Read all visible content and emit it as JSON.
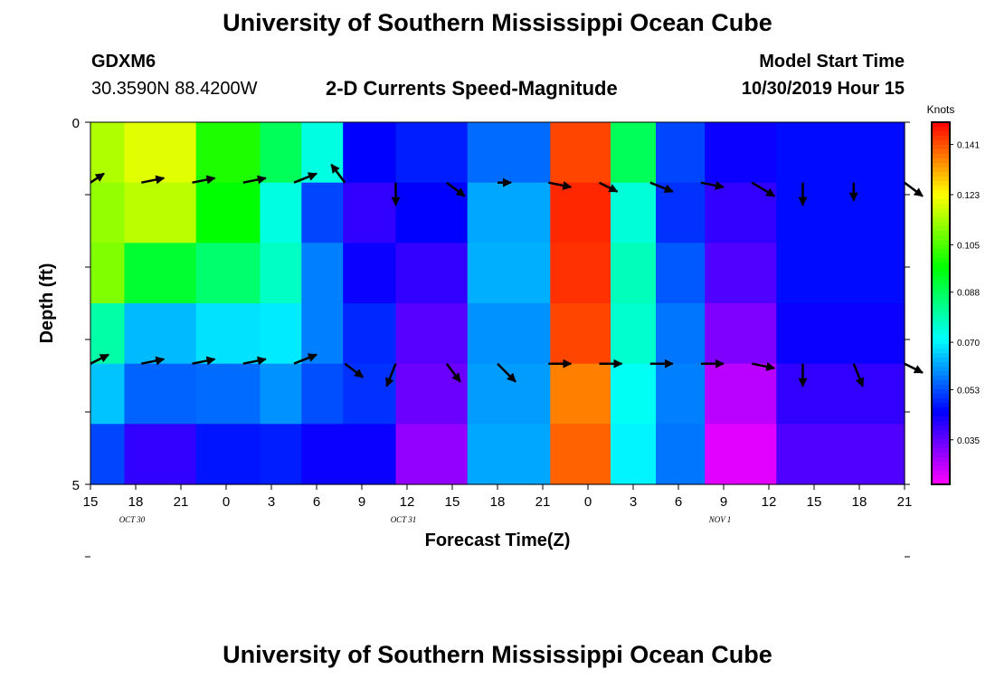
{
  "header": {
    "title": "University of Southern Mississippi Ocean Cube",
    "station_name": "GDXM6",
    "station_coords": "30.3590N 88.4200W",
    "plot_title": "2-D Currents Speed-Magnitude",
    "model_start_label": "Model Start Time",
    "model_start_value": "10/30/2019 Hour 15"
  },
  "footer": {
    "title": "University of Southern Mississippi Ocean Cube"
  },
  "chart_data": {
    "type": "heatmap",
    "title": "2-D Currents Speed-Magnitude",
    "xlabel": "Forecast Time(Z)",
    "ylabel": "Depth (ft)",
    "ylim": [
      0,
      5
    ],
    "y_tick_labels": [
      "0",
      "5"
    ],
    "x_tick_labels": [
      "15",
      "18",
      "21",
      "0",
      "3",
      "6",
      "9",
      "12",
      "15",
      "18",
      "21",
      "0",
      "3",
      "6",
      "9",
      "12",
      "15",
      "18",
      "21"
    ],
    "date_labels": [
      {
        "text": "OCT 30",
        "at_tick": 1
      },
      {
        "text": "OCT 31",
        "at_tick": 7
      },
      {
        "text": "NOV 1",
        "at_tick": 14
      }
    ],
    "colorbar": {
      "label": "Knots",
      "range": [
        0.019,
        0.149
      ],
      "tick_values": [
        0.141,
        0.123,
        0.105,
        0.088,
        0.07,
        0.053,
        0.035
      ],
      "tick_labels": [
        "0.141",
        "0.123",
        "0.105",
        "0.088",
        "0.070",
        "0.053",
        "0.035"
      ]
    },
    "time_hours_from_start": [
      0,
      3,
      6,
      9,
      12,
      15,
      18,
      21,
      24,
      27,
      30,
      33,
      36,
      39,
      42,
      45,
      48,
      51,
      54
    ],
    "speed_column_centers_hours": [
      0,
      4.5,
      9.5,
      13,
      15,
      18.5,
      22,
      28,
      33,
      36,
      39,
      42.5,
      48.5
    ],
    "speed_knots_by_depth_layer": [
      [
        0.115,
        0.12,
        0.1,
        0.088,
        0.074,
        0.045,
        0.048,
        0.056,
        0.142,
        0.088,
        0.052,
        0.044,
        0.046
      ],
      [
        0.112,
        0.116,
        0.097,
        0.074,
        0.052,
        0.04,
        0.045,
        0.062,
        0.145,
        0.075,
        0.05,
        0.04,
        0.046
      ],
      [
        0.11,
        0.092,
        0.086,
        0.077,
        0.058,
        0.044,
        0.04,
        0.063,
        0.144,
        0.078,
        0.054,
        0.037,
        0.046
      ],
      [
        0.08,
        0.064,
        0.068,
        0.069,
        0.058,
        0.049,
        0.036,
        0.06,
        0.142,
        0.076,
        0.057,
        0.032,
        0.044
      ],
      [
        0.065,
        0.055,
        0.056,
        0.06,
        0.053,
        0.05,
        0.034,
        0.061,
        0.136,
        0.072,
        0.058,
        0.026,
        0.04
      ],
      [
        0.052,
        0.04,
        0.047,
        0.048,
        0.044,
        0.044,
        0.03,
        0.062,
        0.139,
        0.07,
        0.057,
        0.022,
        0.037
      ]
    ],
    "current_vectors": {
      "u_knots_layer_1": [
        0.03,
        0.05,
        0.05,
        0.05,
        0.05,
        -0.03,
        0.0,
        0.04,
        0.03,
        0.05,
        0.04,
        0.05,
        0.05,
        0.05,
        0.0,
        0.0,
        0.04
      ],
      "v_knots_layer_1": [
        0.02,
        0.01,
        0.01,
        0.01,
        0.02,
        0.04,
        -0.05,
        -0.03,
        0.0,
        -0.01,
        -0.02,
        -0.02,
        -0.01,
        -0.03,
        -0.05,
        -0.04,
        -0.03
      ],
      "u_knots_layer_2": [
        0.04,
        0.05,
        0.05,
        0.05,
        0.05,
        0.04,
        -0.02,
        0.03,
        0.04,
        0.05,
        0.05,
        0.05,
        0.05,
        0.05,
        0.0,
        0.02,
        0.04
      ],
      "v_knots_layer_2": [
        0.02,
        0.01,
        0.01,
        0.01,
        0.02,
        -0.03,
        -0.05,
        -0.04,
        -0.04,
        0.0,
        0.0,
        0.0,
        0.0,
        -0.01,
        -0.05,
        -0.05,
        -0.02
      ]
    }
  }
}
